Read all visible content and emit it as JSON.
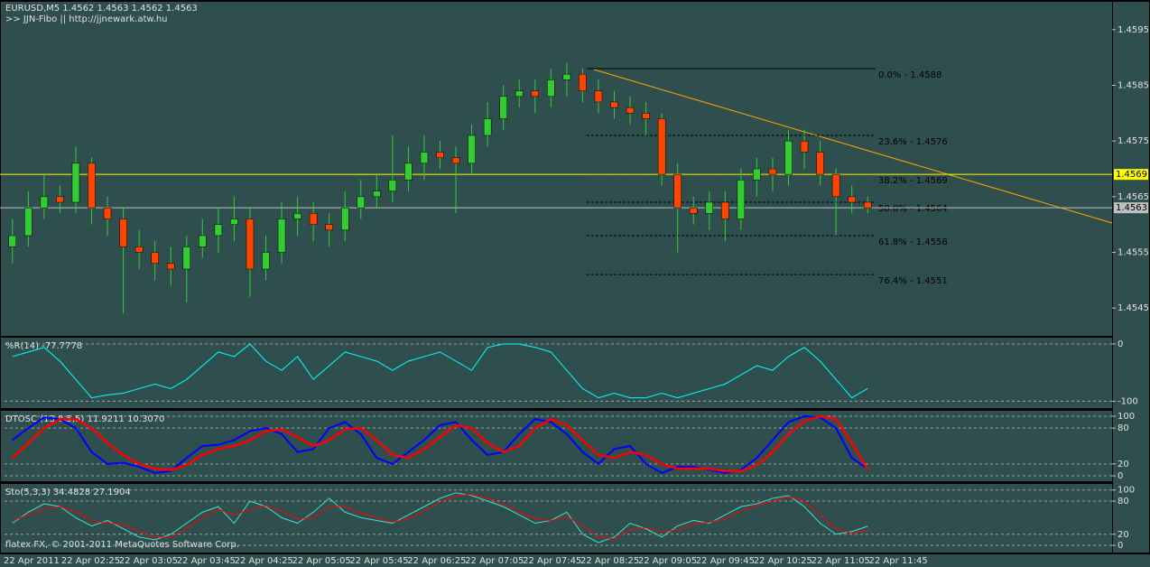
{
  "chart_data": [
    {
      "type": "candlestick",
      "title": "EURUSD,M5  1.4562 1.4563 1.4562 1.4563",
      "subtitle": ">> JJN-Fibo || http://jjnewark.atw.hu",
      "footer": "flatex FX, © 2001-2011 MetaQuotes Software Corp.",
      "time_labels": [
        "22 Apr 2011",
        "22 Apr 02:25",
        "22 Apr 03:05",
        "22 Apr 03:45",
        "22 Apr 04:25",
        "22 Apr 05:05",
        "22 Apr 05:45",
        "22 Apr 06:25",
        "22 Apr 07:05",
        "22 Apr 07:45",
        "22 Apr 08:25",
        "22 Apr 09:05",
        "22 Apr 09:45",
        "22 Apr 10:25",
        "22 Apr 11:05",
        "22 Apr 11:45"
      ],
      "open": [
        1.4556,
        1.4558,
        1.4563,
        1.4565,
        1.4564,
        1.4571,
        1.4563,
        1.4561,
        1.4556,
        1.4555,
        1.4553,
        1.4552,
        1.4556,
        1.4558,
        1.456,
        1.4561,
        1.4552,
        1.4555,
        1.4561,
        1.4562,
        1.456,
        1.4559,
        1.4563,
        1.4565,
        1.4566,
        1.4568,
        1.4571,
        1.4573,
        1.4572,
        1.4571,
        1.4576,
        1.4579,
        1.4583,
        1.4584,
        1.4583,
        1.4586,
        1.4587,
        1.4584,
        1.4582,
        1.4581,
        1.458,
        1.4579,
        1.4569,
        1.4563,
        1.4562,
        1.4564,
        1.4561,
        1.4568,
        1.457,
        1.4569,
        1.4575,
        1.4573,
        1.4569,
        1.4565,
        1.4564
      ],
      "high": [
        1.4561,
        1.4566,
        1.4569,
        1.4567,
        1.4574,
        1.4572,
        1.4565,
        1.4563,
        1.4559,
        1.4557,
        1.4556,
        1.4558,
        1.4561,
        1.4563,
        1.4565,
        1.4563,
        1.4558,
        1.4564,
        1.4565,
        1.4564,
        1.4562,
        1.4566,
        1.4568,
        1.4569,
        1.4576,
        1.4574,
        1.4576,
        1.4575,
        1.4574,
        1.4578,
        1.4582,
        1.4585,
        1.4586,
        1.4586,
        1.4588,
        1.4589,
        1.4588,
        1.4586,
        1.4584,
        1.4583,
        1.4582,
        1.458,
        1.4571,
        1.4565,
        1.4566,
        1.4566,
        1.457,
        1.4572,
        1.4572,
        1.4577,
        1.4577,
        1.4575,
        1.457,
        1.4567,
        1.4565
      ],
      "low": [
        1.4553,
        1.4556,
        1.4561,
        1.4562,
        1.4562,
        1.456,
        1.4558,
        1.4544,
        1.4552,
        1.455,
        1.4549,
        1.4546,
        1.4554,
        1.4555,
        1.4557,
        1.4547,
        1.455,
        1.4553,
        1.4558,
        1.4557,
        1.4556,
        1.4557,
        1.4561,
        1.4563,
        1.4564,
        1.4566,
        1.4568,
        1.457,
        1.4562,
        1.4569,
        1.4574,
        1.4577,
        1.4581,
        1.458,
        1.4581,
        1.4583,
        1.4582,
        1.458,
        1.4579,
        1.4578,
        1.4576,
        1.4567,
        1.4555,
        1.456,
        1.4559,
        1.4557,
        1.4559,
        1.4565,
        1.4566,
        1.4567,
        1.457,
        1.4567,
        1.4558,
        1.4562,
        1.4562
      ],
      "close": [
        1.4558,
        1.4563,
        1.4565,
        1.4564,
        1.4571,
        1.4563,
        1.4561,
        1.4556,
        1.4555,
        1.4553,
        1.4552,
        1.4556,
        1.4558,
        1.456,
        1.4561,
        1.4552,
        1.4555,
        1.4561,
        1.4562,
        1.456,
        1.4559,
        1.4563,
        1.4565,
        1.4566,
        1.4568,
        1.4571,
        1.4573,
        1.4572,
        1.4571,
        1.4576,
        1.4579,
        1.4583,
        1.4584,
        1.4583,
        1.4586,
        1.4587,
        1.4584,
        1.4582,
        1.4581,
        1.458,
        1.4579,
        1.4569,
        1.4563,
        1.4562,
        1.4564,
        1.4561,
        1.4568,
        1.457,
        1.4569,
        1.4575,
        1.4573,
        1.4569,
        1.4565,
        1.4564,
        1.4563
      ],
      "up_color": "#32cd32",
      "down_color": "#ff4500",
      "ylim": [
        1.454,
        1.46
      ],
      "yticks": [
        1.4545,
        1.4555,
        1.4565,
        1.4575,
        1.4585,
        1.4595
      ],
      "fib_levels": [
        {
          "value": 1.4588,
          "label": "0.0% - 1.4588"
        },
        {
          "value": 1.4576,
          "label": "23.6% - 1.4576"
        },
        {
          "value": 1.4569,
          "label": "38.2% - 1.4569"
        },
        {
          "value": 1.4564,
          "label": "50.0% - 1.4564"
        },
        {
          "value": 1.4558,
          "label": "61.8% - 1.4558"
        },
        {
          "value": 1.4551,
          "label": "76.4% - 1.4551"
        }
      ],
      "price_lines": [
        {
          "value": 1.4569,
          "label": "1.4569",
          "color": "#ffff00"
        },
        {
          "value": 1.4563,
          "label": "1.4563",
          "color": "#c0c0c0"
        }
      ]
    },
    {
      "type": "line",
      "title": "%R(14) -77.7778",
      "ylim": [
        -112,
        11
      ],
      "yticks": [
        0,
        -100
      ],
      "series": [
        {
          "color": "#00ffff",
          "values": [
            -22,
            -14,
            -6,
            -30,
            -62,
            -94,
            -89,
            -86,
            -78,
            -70,
            -78,
            -62,
            -38,
            -14,
            -22,
            0,
            -30,
            -46,
            -22,
            -62,
            -38,
            -14,
            -22,
            -30,
            -46,
            -30,
            -22,
            -14,
            -30,
            -46,
            -6,
            0,
            0,
            -6,
            -14,
            -46,
            -78,
            -94,
            -86,
            -94,
            -94,
            -86,
            -94,
            -86,
            -78,
            -70,
            -54,
            -38,
            -46,
            -22,
            -6,
            -30,
            -62,
            -94,
            -77.7778
          ]
        }
      ]
    },
    {
      "type": "line",
      "title": "DTOSC (13,8,5,5) 11.9211 10.3070",
      "ylim": [
        -9,
        109
      ],
      "yticks": [
        100,
        80,
        20,
        0
      ],
      "series": [
        {
          "color": "#0000ff",
          "width": 2,
          "values": [
            60,
            80,
            98,
            95,
            80,
            40,
            20,
            22,
            15,
            5,
            8,
            30,
            50,
            52,
            60,
            75,
            80,
            70,
            40,
            45,
            80,
            90,
            70,
            30,
            20,
            40,
            60,
            85,
            90,
            60,
            35,
            40,
            70,
            95,
            90,
            70,
            40,
            20,
            45,
            50,
            20,
            5,
            15,
            15,
            10,
            5,
            10,
            30,
            60,
            90,
            100,
            98,
            80,
            30,
            11.9211
          ]
        },
        {
          "color": "#ff0000",
          "width": 2.5,
          "values": [
            30,
            55,
            80,
            95,
            95,
            80,
            55,
            35,
            20,
            12,
            10,
            18,
            35,
            45,
            50,
            60,
            75,
            78,
            65,
            50,
            60,
            78,
            80,
            60,
            35,
            30,
            45,
            65,
            85,
            80,
            55,
            40,
            50,
            80,
            95,
            85,
            60,
            35,
            30,
            40,
            35,
            20,
            12,
            12,
            12,
            8,
            8,
            18,
            40,
            70,
            92,
            100,
            95,
            55,
            10.307
          ]
        }
      ]
    },
    {
      "type": "line",
      "title": "Sto(5,3,3) 34.4828 27.1904",
      "ylim": [
        -13,
        111
      ],
      "yticks": [
        100,
        80,
        20,
        0
      ],
      "series": [
        {
          "color": "#40e0d0",
          "width": 1,
          "values": [
            40,
            60,
            75,
            70,
            50,
            35,
            45,
            30,
            15,
            10,
            20,
            40,
            60,
            70,
            40,
            80,
            70,
            50,
            40,
            60,
            85,
            60,
            50,
            45,
            40,
            55,
            70,
            85,
            95,
            90,
            80,
            70,
            55,
            40,
            45,
            60,
            20,
            5,
            15,
            40,
            30,
            15,
            35,
            45,
            40,
            55,
            70,
            75,
            85,
            90,
            70,
            40,
            20,
            25,
            34.4828
          ]
        },
        {
          "color": "#ff0000",
          "width": 1,
          "values": [
            45,
            55,
            65,
            70,
            60,
            45,
            40,
            38,
            25,
            15,
            15,
            30,
            50,
            65,
            55,
            65,
            72,
            62,
            48,
            50,
            70,
            70,
            58,
            50,
            42,
            48,
            62,
            78,
            90,
            92,
            85,
            75,
            60,
            48,
            45,
            52,
            35,
            15,
            12,
            28,
            32,
            25,
            28,
            38,
            42,
            48,
            62,
            72,
            80,
            88,
            80,
            55,
            30,
            22,
            27.1904
          ]
        }
      ]
    }
  ]
}
